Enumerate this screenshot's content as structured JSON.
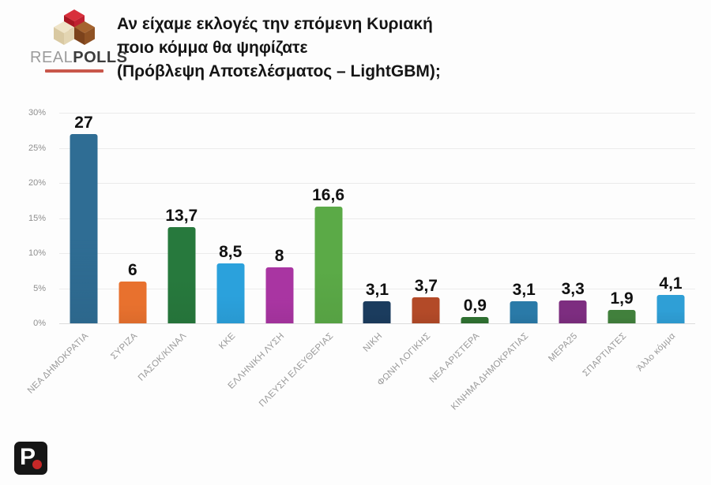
{
  "header": {
    "logo": {
      "brand_left": "REAL",
      "brand_right": "POLLS"
    },
    "title_lines": [
      "Αν είχαμε εκλογές την επόμενη Κυριακή",
      "ποιο κόμμα θα ψηφίζατε",
      "(Πρόβλεψη Αποτελέσματος – LightGBM);"
    ]
  },
  "chart_data": {
    "type": "bar",
    "title": "Αν είχαμε εκλογές την επόμενη Κυριακή ποιο κόμμα θα ψηφίζατε (Πρόβλεψη Αποτελέσματος – LightGBM);",
    "categories": [
      "ΝΕΑ ΔΗΜΟΚΡΑΤΙΑ",
      "ΣΥΡΙΖΑ",
      "ΠΑΣΟΚ/ΚΙΝΑΛ",
      "ΚΚΕ",
      "ΕΛΛΗΝΙΚΗ ΛΥΣΗ",
      "ΠΛΕΥΣΗ ΕΛΕΥΘΕΡΙΑΣ",
      "ΝΙΚΗ",
      "ΦΩΝΗ ΛΟΓΙΚΗΣ",
      "ΝΕΑ ΑΡΙΣΤΕΡΑ",
      "ΚΙΝΗΜΑ ΔΗΜΟΚΡΑΤΙΑΣ",
      "ΜΕΡΑ25",
      "ΣΠΑΡΤΙΑΤΕΣ",
      "Άλλο κόμμα"
    ],
    "values": [
      27,
      6,
      13.7,
      8.5,
      8,
      16.6,
      3.1,
      3.7,
      0.9,
      3.1,
      3.3,
      1.9,
      4.1
    ],
    "value_labels": [
      "27",
      "6",
      "13,7",
      "8,5",
      "8",
      "16,6",
      "3,1",
      "3,7",
      "0,9",
      "3,1",
      "3,3",
      "1,9",
      "4,1"
    ],
    "bar_colors": [
      "#2f6d94",
      "#e8712e",
      "#27793d",
      "#2ba1dc",
      "#a935a2",
      "#5baa47",
      "#1b3c5e",
      "#b34a28",
      "#2e6f30",
      "#2a7aa8",
      "#7d2d80",
      "#41803c",
      "#2f9fd6"
    ],
    "xlabel": "",
    "ylabel": "",
    "ylim": [
      0,
      30
    ],
    "ytick_step": 5,
    "yticks": [
      "0%",
      "5%",
      "10%",
      "15%",
      "20%",
      "25%",
      "30%"
    ],
    "grid": true,
    "legend": false
  },
  "footer": {
    "logo_letter": "P"
  }
}
